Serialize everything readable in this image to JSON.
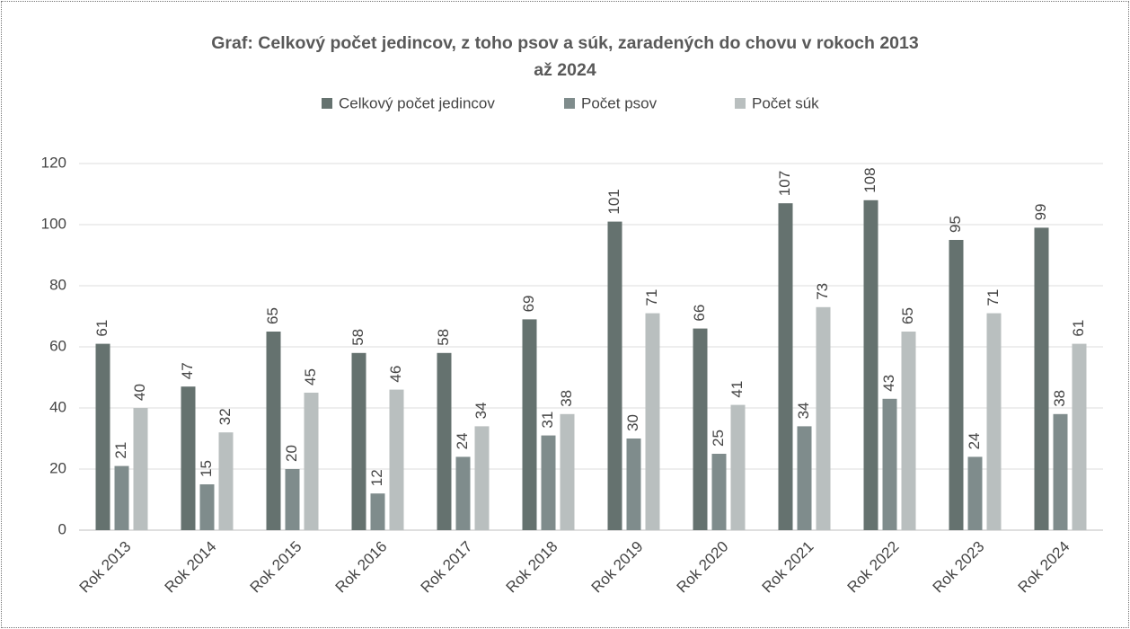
{
  "chart_data": {
    "type": "bar",
    "title": "Graf: Celkový počet jedincov, z toho psov a súk, zaradených do chovu v rokoch 2013 až 2024",
    "categories": [
      "Rok 2013",
      "Rok 2014",
      "Rok 2015",
      "Rok 2016",
      "Rok 2017",
      "Rok 2018",
      "Rok 2019",
      "Rok 2020",
      "Rok 2021",
      "Rok 2022",
      "Rok 2023",
      "Rok 2024"
    ],
    "series": [
      {
        "name": "Celkový počet jedincov",
        "color": "#65726f",
        "values": [
          61,
          47,
          65,
          58,
          58,
          69,
          101,
          66,
          107,
          108,
          95,
          99
        ]
      },
      {
        "name": "Počet psov",
        "color": "#7f8c8c",
        "values": [
          21,
          15,
          20,
          12,
          24,
          31,
          30,
          25,
          34,
          43,
          24,
          38
        ]
      },
      {
        "name": "Počet súk",
        "color": "#b9bfbf",
        "values": [
          40,
          32,
          45,
          46,
          34,
          38,
          71,
          41,
          73,
          65,
          71,
          61
        ]
      }
    ],
    "ylim": [
      0,
      120
    ],
    "yticks": [
      0,
      20,
      40,
      60,
      80,
      100,
      120
    ],
    "grid": true,
    "legend": "top"
  }
}
